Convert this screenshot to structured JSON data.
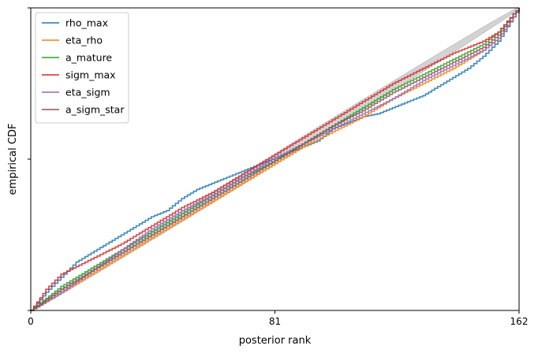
{
  "chart_data": {
    "type": "line",
    "xlabel": "posterior rank",
    "ylabel": "empirical CDF",
    "xlim": [
      0,
      162
    ],
    "ylim": [
      0,
      1
    ],
    "x_ticks": [
      0,
      81,
      162
    ],
    "x_tick_labels": [
      "0",
      "81",
      "162"
    ],
    "y_ticks": [
      0,
      0.5,
      1
    ],
    "grid": false,
    "legend_position": "top-left",
    "confidence_band_color": "#d3d3d3",
    "series": [
      {
        "name": "rho_max",
        "color": "#1f77b4",
        "x": [
          0,
          5,
          10,
          15,
          20,
          25,
          30,
          35,
          40,
          45,
          50,
          55,
          60,
          65,
          70,
          75,
          80,
          85,
          90,
          95,
          100,
          105,
          110,
          115,
          120,
          125,
          130,
          135,
          140,
          145,
          150,
          155,
          160,
          162
        ],
        "y": [
          0,
          0.06,
          0.11,
          0.16,
          0.19,
          0.22,
          0.25,
          0.28,
          0.31,
          0.33,
          0.37,
          0.4,
          0.42,
          0.44,
          0.46,
          0.48,
          0.5,
          0.52,
          0.54,
          0.56,
          0.6,
          0.62,
          0.64,
          0.65,
          0.67,
          0.69,
          0.71,
          0.74,
          0.77,
          0.8,
          0.84,
          0.89,
          0.97,
          1.0
        ]
      },
      {
        "name": "eta_rho",
        "color": "#ff7f0e",
        "x": [
          0,
          10,
          20,
          30,
          40,
          50,
          60,
          70,
          80,
          90,
          100,
          110,
          120,
          130,
          140,
          150,
          155,
          160,
          162
        ],
        "y": [
          0,
          0.06,
          0.12,
          0.18,
          0.24,
          0.3,
          0.36,
          0.42,
          0.48,
          0.54,
          0.59,
          0.64,
          0.7,
          0.75,
          0.8,
          0.86,
          0.9,
          0.97,
          1.0
        ]
      },
      {
        "name": "a_mature",
        "color": "#2ca02c",
        "x": [
          0,
          10,
          20,
          30,
          40,
          50,
          60,
          70,
          80,
          90,
          100,
          110,
          120,
          130,
          140,
          150,
          155,
          160,
          162
        ],
        "y": [
          0,
          0.08,
          0.14,
          0.2,
          0.26,
          0.32,
          0.38,
          0.44,
          0.49,
          0.55,
          0.61,
          0.67,
          0.73,
          0.78,
          0.83,
          0.88,
          0.92,
          0.98,
          1.0
        ]
      },
      {
        "name": "sigm_max",
        "color": "#d62728",
        "x": [
          0,
          5,
          10,
          20,
          30,
          40,
          50,
          60,
          70,
          80,
          90,
          100,
          110,
          120,
          130,
          140,
          150,
          155,
          160,
          162
        ],
        "y": [
          0,
          0.07,
          0.12,
          0.17,
          0.22,
          0.28,
          0.34,
          0.39,
          0.45,
          0.51,
          0.57,
          0.63,
          0.69,
          0.75,
          0.8,
          0.85,
          0.89,
          0.92,
          0.98,
          1.0
        ]
      },
      {
        "name": "eta_sigm",
        "color": "#9467bd",
        "x": [
          0,
          10,
          20,
          30,
          40,
          50,
          60,
          70,
          80,
          90,
          100,
          110,
          120,
          130,
          140,
          150,
          155,
          160,
          162
        ],
        "y": [
          0,
          0.06,
          0.13,
          0.2,
          0.27,
          0.33,
          0.38,
          0.44,
          0.5,
          0.55,
          0.6,
          0.65,
          0.7,
          0.76,
          0.81,
          0.86,
          0.9,
          0.97,
          1.0
        ]
      },
      {
        "name": "a_sigm_star",
        "color": "#8c564b",
        "x": [
          0,
          10,
          20,
          30,
          40,
          50,
          60,
          70,
          80,
          90,
          100,
          110,
          120,
          130,
          140,
          150,
          155,
          160,
          162
        ],
        "y": [
          0,
          0.07,
          0.13,
          0.19,
          0.25,
          0.31,
          0.37,
          0.43,
          0.49,
          0.55,
          0.61,
          0.66,
          0.72,
          0.77,
          0.82,
          0.87,
          0.91,
          0.98,
          1.0
        ]
      }
    ]
  }
}
